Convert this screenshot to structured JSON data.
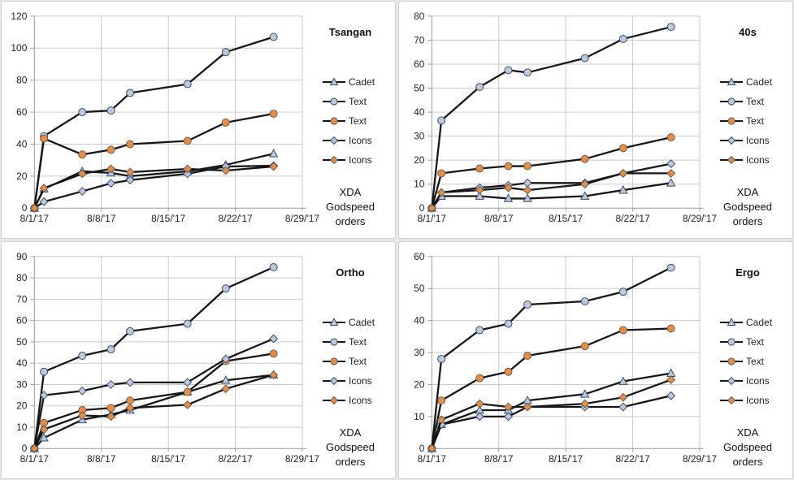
{
  "page": {
    "background_color": "#e8e9eb",
    "panel_background": "#ffffff"
  },
  "colors": {
    "line": "#161616",
    "grid": "#c8c8c8",
    "axis": "#9b9b9b",
    "text": "#222222",
    "blue_fill": "#bac9de",
    "blue_stroke": "#3d4d68",
    "orange_fill": "#ee8c3c",
    "orange_stroke": "#5f5f5f"
  },
  "footnote_lines": [
    "XDA",
    "Godspeed",
    "orders"
  ],
  "x_axis": {
    "tick_labels": [
      "8/1/'17",
      "8/8/'17",
      "8/15/'17",
      "8/22/'17",
      "8/29/'17"
    ],
    "tick_days": [
      1,
      8,
      15,
      22,
      29
    ],
    "range_days": [
      1,
      29
    ]
  },
  "chart_data": [
    {
      "type": "line",
      "title": "Tsangan",
      "annotation": "XDA Godspeed orders",
      "ylim": [
        0,
        120
      ],
      "ytick_step": 20,
      "grid": true,
      "legend_position": "right",
      "x_days": [
        1,
        2,
        6,
        9,
        11,
        17,
        21,
        26
      ],
      "series": [
        {
          "name": "Cadet",
          "marker": "triangle",
          "palette": "blue",
          "values": [
            0,
            12,
            23,
            22,
            20,
            23,
            27,
            34
          ]
        },
        {
          "name": "Text",
          "marker": "circle",
          "palette": "blue",
          "values": [
            0,
            45,
            60,
            61,
            72,
            77.5,
            97.5,
            107
          ]
        },
        {
          "name": "Text",
          "marker": "circle",
          "palette": "orange",
          "values": [
            0,
            43.5,
            33.5,
            36.5,
            40,
            42,
            53.5,
            59
          ]
        },
        {
          "name": "Icons",
          "marker": "diamond",
          "palette": "blue",
          "values": [
            0,
            4,
            10.5,
            15.5,
            17.5,
            21.5,
            26,
            26.5
          ]
        },
        {
          "name": "Icons",
          "marker": "diamond",
          "palette": "orange",
          "values": [
            0,
            12.5,
            21.5,
            24.5,
            22.5,
            24.5,
            23.5,
            26
          ]
        }
      ]
    },
    {
      "type": "line",
      "title": "40s",
      "annotation": "XDA Godspeed orders",
      "ylim": [
        0,
        80
      ],
      "ytick_step": 10,
      "grid": true,
      "legend_position": "right",
      "x_days": [
        1,
        2,
        6,
        9,
        11,
        17,
        21,
        26
      ],
      "series": [
        {
          "name": "Cadet",
          "marker": "triangle",
          "palette": "blue",
          "values": [
            0,
            5,
            5,
            4,
            4,
            5,
            7.5,
            10.5
          ]
        },
        {
          "name": "Text",
          "marker": "circle",
          "palette": "blue",
          "values": [
            0,
            36.5,
            50.5,
            57.5,
            56.5,
            62.5,
            70.5,
            75.5
          ]
        },
        {
          "name": "Text",
          "marker": "circle",
          "palette": "orange",
          "values": [
            0,
            14.5,
            16.5,
            17.5,
            17.5,
            20.5,
            25,
            29.5
          ]
        },
        {
          "name": "Icons",
          "marker": "diamond",
          "palette": "blue",
          "values": [
            0,
            6.5,
            8.5,
            9.5,
            10.5,
            10.5,
            14.5,
            18.5
          ]
        },
        {
          "name": "Icons",
          "marker": "diamond",
          "palette": "orange",
          "values": [
            0,
            6.5,
            7.5,
            8.5,
            7.5,
            10,
            14.5,
            14.5
          ]
        }
      ]
    },
    {
      "type": "line",
      "title": "Ortho",
      "annotation": "XDA Godspeed orders",
      "ylim": [
        0,
        90
      ],
      "ytick_step": 10,
      "grid": true,
      "legend_position": "right",
      "x_days": [
        1,
        2,
        6,
        9,
        11,
        17,
        21,
        26
      ],
      "series": [
        {
          "name": "Cadet",
          "marker": "triangle",
          "palette": "blue",
          "values": [
            0,
            5,
            13.5,
            16,
            18,
            26.5,
            32,
            34.5
          ]
        },
        {
          "name": "Text",
          "marker": "circle",
          "palette": "blue",
          "values": [
            0,
            36,
            43.5,
            46.5,
            55,
            58.5,
            75,
            85
          ]
        },
        {
          "name": "Text",
          "marker": "circle",
          "palette": "orange",
          "values": [
            0,
            12,
            18,
            19,
            22.5,
            26.5,
            41,
            44.5
          ]
        },
        {
          "name": "Icons",
          "marker": "diamond",
          "palette": "blue",
          "values": [
            0,
            25,
            27,
            30,
            31,
            31,
            42,
            51.5
          ]
        },
        {
          "name": "Icons",
          "marker": "diamond",
          "palette": "orange",
          "values": [
            0,
            9,
            15.5,
            15,
            19,
            20.5,
            28,
            34.5
          ]
        }
      ]
    },
    {
      "type": "line",
      "title": "Ergo",
      "annotation": "XDA Godspeed orders",
      "ylim": [
        0,
        60
      ],
      "ytick_step": 10,
      "grid": true,
      "legend_position": "right",
      "x_days": [
        1,
        2,
        6,
        9,
        11,
        17,
        21,
        26
      ],
      "series": [
        {
          "name": "Cadet",
          "marker": "triangle",
          "palette": "blue",
          "values": [
            0,
            7.5,
            12,
            12,
            15,
            17,
            21,
            23.5
          ]
        },
        {
          "name": "Text",
          "marker": "circle",
          "palette": "blue",
          "values": [
            0,
            28,
            37,
            39,
            45,
            46,
            49,
            56.5
          ]
        },
        {
          "name": "Text",
          "marker": "circle",
          "palette": "orange",
          "values": [
            0,
            15,
            22,
            24,
            29,
            32,
            37,
            37.5
          ]
        },
        {
          "name": "Icons",
          "marker": "diamond",
          "palette": "blue",
          "values": [
            0,
            7.5,
            10,
            10,
            13,
            13,
            13,
            16.5
          ]
        },
        {
          "name": "Icons",
          "marker": "diamond",
          "palette": "orange",
          "values": [
            0,
            9,
            14,
            13,
            13,
            14,
            16,
            21.5
          ]
        }
      ]
    }
  ]
}
